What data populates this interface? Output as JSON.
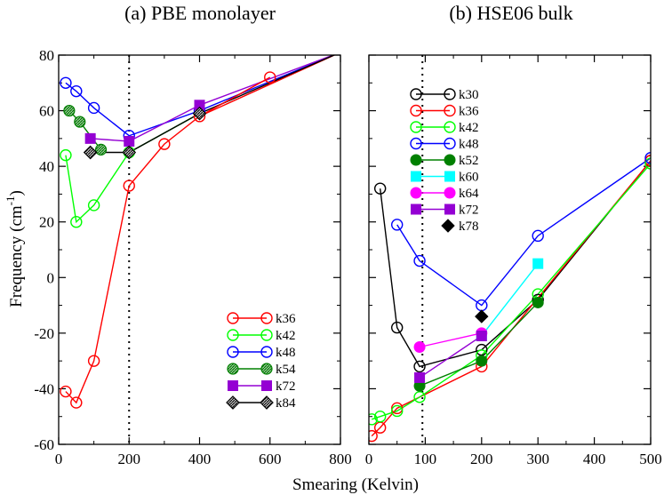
{
  "figure": {
    "xlabel": "Smearing (Kelvin)",
    "ylabel_main": "Frequency (cm",
    "ylabel_sup": "-1",
    "ylabel_close": ")"
  },
  "chart_data": [
    {
      "type": "line",
      "title": "(a) PBE monolayer",
      "xlim": [
        0,
        800
      ],
      "ylim": [
        -60,
        80
      ],
      "xticks": [
        0,
        200,
        400,
        600,
        800
      ],
      "yticks": [
        -60,
        -40,
        -20,
        0,
        20,
        40,
        60,
        80
      ],
      "vline_x": 200,
      "legend_position": "bottom-right",
      "series": [
        {
          "name": "k36",
          "color": "#ff0000",
          "marker": "circle-open",
          "x": [
            20,
            50,
            100,
            200,
            300,
            400,
            600
          ],
          "y": [
            -41,
            -45,
            -30,
            33,
            48,
            58,
            72
          ]
        },
        {
          "name": "k42",
          "color": "#00ff00",
          "marker": "circle-open",
          "x": [
            20,
            50,
            100,
            200
          ],
          "y": [
            44,
            20,
            26,
            45
          ]
        },
        {
          "name": "k48",
          "color": "#0000ff",
          "marker": "circle-open",
          "x": [
            20,
            50,
            100,
            200,
            400
          ],
          "y": [
            70,
            67,
            61,
            51,
            60
          ]
        },
        {
          "name": "k54",
          "color": "#008000",
          "marker": "circle-hatched",
          "x": [
            30,
            60,
            120
          ],
          "y": [
            60,
            56,
            46
          ]
        },
        {
          "name": "k72",
          "color": "#9400d3",
          "marker": "square",
          "x": [
            90,
            200,
            400
          ],
          "y": [
            50,
            49,
            62
          ]
        },
        {
          "name": "k84",
          "color": "#000000",
          "marker": "diamond-hatched",
          "x": [
            90,
            200,
            400
          ],
          "y": [
            45,
            45,
            59
          ]
        }
      ],
      "extra_lines": [
        {
          "color": "#ff0000",
          "x": [
            400,
            800
          ],
          "y": [
            58,
            81
          ]
        },
        {
          "color": "#0000ff",
          "x": [
            400,
            800
          ],
          "y": [
            60,
            81
          ]
        },
        {
          "color": "#9400d3",
          "x": [
            400,
            800
          ],
          "y": [
            62,
            81
          ]
        },
        {
          "color": "#000000",
          "x": [
            400,
            800
          ],
          "y": [
            59,
            81
          ]
        },
        {
          "color": "#00ff00",
          "x": [
            200,
            400
          ],
          "y": [
            45,
            59
          ]
        }
      ]
    },
    {
      "type": "line",
      "title": "(b) HSE06 bulk",
      "xlim": [
        0,
        500
      ],
      "ylim": [
        -60,
        80
      ],
      "xticks": [
        0,
        100,
        200,
        300,
        400,
        500
      ],
      "yticks": [
        -60,
        -40,
        -20,
        0,
        20,
        40,
        60,
        80
      ],
      "vline_x": 95,
      "legend_position": "top-left",
      "series": [
        {
          "name": "k30",
          "color": "#000000",
          "marker": "circle-open",
          "x": [
            20,
            50,
            90,
            200,
            300,
            500
          ],
          "y": [
            32,
            -18,
            -32,
            -26,
            -8,
            42
          ]
        },
        {
          "name": "k36",
          "color": "#ff0000",
          "marker": "circle-open",
          "x": [
            5,
            20,
            50,
            200,
            500
          ],
          "y": [
            -57,
            -54,
            -47,
            -32,
            42
          ]
        },
        {
          "name": "k42",
          "color": "#00ff00",
          "marker": "circle-open",
          "x": [
            5,
            20,
            50,
            90,
            200,
            300,
            500
          ],
          "y": [
            -51,
            -50,
            -48,
            -43,
            -28,
            -6,
            41
          ]
        },
        {
          "name": "k48",
          "color": "#0000ff",
          "marker": "circle-open",
          "x": [
            50,
            90,
            200,
            300,
            500
          ],
          "y": [
            19,
            6,
            -10,
            15,
            43
          ]
        },
        {
          "name": "k52",
          "color": "#008000",
          "marker": "circle-filled",
          "x": [
            90,
            200,
            300
          ],
          "y": [
            -39,
            -30,
            -9
          ]
        },
        {
          "name": "k60",
          "color": "#00ffff",
          "marker": "square",
          "x": [
            200,
            300
          ],
          "y": [
            -21,
            5
          ]
        },
        {
          "name": "k64",
          "color": "#ff00ff",
          "marker": "circle-filled",
          "x": [
            90,
            200
          ],
          "y": [
            -25,
            -20
          ]
        },
        {
          "name": "k72",
          "color": "#9400d3",
          "marker": "square",
          "x": [
            90,
            200
          ],
          "y": [
            -36,
            -21
          ]
        },
        {
          "name": "k78",
          "color": "#000000",
          "marker": "diamond",
          "x": [
            200
          ],
          "y": [
            -14
          ],
          "noline": true
        }
      ],
      "extra_lines": []
    }
  ]
}
